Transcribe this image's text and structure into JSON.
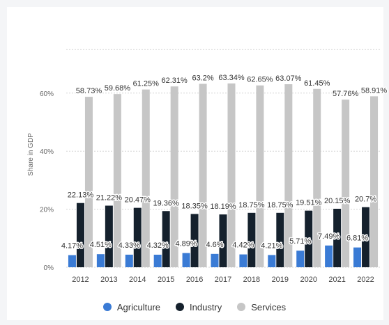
{
  "chart_data": {
    "type": "bar",
    "title": "",
    "xlabel": "",
    "ylabel": "Share in GDP",
    "ylim": [
      0,
      75
    ],
    "yticks": [
      0,
      20,
      40,
      60
    ],
    "ytick_labels": [
      "0%",
      "20%",
      "40%",
      "60%"
    ],
    "grid": true,
    "legend_position": "bottom",
    "categories": [
      "2012",
      "2013",
      "2014",
      "2015",
      "2016",
      "2017",
      "2018",
      "2019",
      "2020",
      "2021",
      "2022"
    ],
    "series": [
      {
        "name": "Agriculture",
        "color": "#3a7bd5",
        "values": [
          4.17,
          4.51,
          4.33,
          4.32,
          4.89,
          4.6,
          4.42,
          4.21,
          5.71,
          7.49,
          6.81
        ],
        "labels": [
          "4.17%",
          "4.51%",
          "4.33%",
          "4.32%",
          "4.89%",
          "4.6%",
          "4.42%",
          "4.21%",
          "5.71%",
          "7.49%",
          "6.81%"
        ]
      },
      {
        "name": "Industry",
        "color": "#15212d",
        "values": [
          22.13,
          21.22,
          20.47,
          19.36,
          18.35,
          18.19,
          18.75,
          18.75,
          19.51,
          20.15,
          20.7
        ],
        "labels": [
          "22.13%",
          "21.22%",
          "20.47%",
          "19.36%",
          "18.35%",
          "18.19%",
          "18.75%",
          "18.75%",
          "19.51%",
          "20.15%",
          "20.7%"
        ]
      },
      {
        "name": "Services",
        "color": "#c6c6c6",
        "values": [
          58.73,
          59.68,
          61.25,
          62.31,
          63.2,
          63.34,
          62.65,
          63.07,
          61.45,
          57.76,
          58.91
        ],
        "labels": [
          "58.73%",
          "59.68%",
          "61.25%",
          "62.31%",
          "63.2%",
          "63.34%",
          "62.65%",
          "63.07%",
          "61.45%",
          "57.76%",
          "58.91%"
        ]
      }
    ]
  }
}
